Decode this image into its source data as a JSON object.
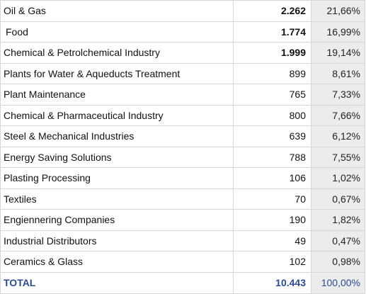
{
  "table": {
    "rows": [
      [
        "Oil & Gas",
        "2.262",
        "21,66%"
      ],
      [
        "Food",
        "1.774",
        "16,99%"
      ],
      [
        "Chemical & Petrolchemical Industry",
        "1.999",
        "19,14%"
      ],
      [
        "Plants for Water & Aqueducts Treatment",
        "899",
        "8,61%"
      ],
      [
        "Plant Maintenance",
        "765",
        "7,33%"
      ],
      [
        "Chemical & Pharmaceutical Industry",
        "800",
        "7,66%"
      ],
      [
        "Steel & Mechanical Industries",
        "639",
        "6,12%"
      ],
      [
        "Energy Saving Solutions",
        "788",
        "7,55%"
      ],
      [
        "Plasting Processing",
        "106",
        "1,02%"
      ],
      [
        "Textiles",
        "70",
        "0,67%"
      ],
      [
        "Engiennering Companies",
        "190",
        "1,82%"
      ],
      [
        "Industrial Distributors",
        "49",
        "0,47%"
      ],
      [
        "Ceramics & Glass",
        "102",
        "0,98%"
      ]
    ],
    "total": [
      "TOTAL",
      "10.443",
      "100,00%"
    ]
  }
}
